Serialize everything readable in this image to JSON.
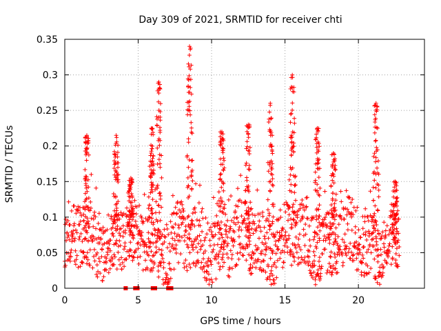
{
  "chart_data": {
    "type": "scatter",
    "title": "Day 309 of 2021, SRMTID for receiver chti",
    "xlabel": "GPS time / hours",
    "ylabel": "SRMTID / TECUs",
    "xlim": [
      0,
      24.5
    ],
    "ylim": [
      0,
      0.35
    ],
    "xticks": [
      0,
      5,
      10,
      15,
      20
    ],
    "xtick_labels": [
      "0",
      "5",
      "10",
      "15",
      "20"
    ],
    "yticks": [
      0,
      0.05,
      0.1,
      0.15,
      0.2,
      0.25,
      0.3,
      0.35
    ],
    "ytick_labels": [
      "0",
      "0.05",
      "0.1",
      "0.15",
      "0.2",
      "0.25",
      "0.3",
      "0.35"
    ],
    "grid": true,
    "marker": "plus",
    "color": "#ff0000",
    "data_range_hours": [
      0,
      22.8
    ],
    "baseline_band": [
      0.02,
      0.11
    ],
    "bursts": [
      {
        "x": 1.5,
        "peak": 0.215
      },
      {
        "x": 3.5,
        "peak": 0.215
      },
      {
        "x": 4.5,
        "peak": 0.155
      },
      {
        "x": 5.9,
        "peak": 0.225
      },
      {
        "x": 6.4,
        "peak": 0.29
      },
      {
        "x": 8.5,
        "peak": 0.34
      },
      {
        "x": 10.7,
        "peak": 0.22
      },
      {
        "x": 12.5,
        "peak": 0.23
      },
      {
        "x": 14.0,
        "peak": 0.26
      },
      {
        "x": 15.5,
        "peak": 0.3
      },
      {
        "x": 17.2,
        "peak": 0.225
      },
      {
        "x": 18.3,
        "peak": 0.19
      },
      {
        "x": 21.2,
        "peak": 0.26
      },
      {
        "x": 22.5,
        "peak": 0.15
      }
    ],
    "zero_markers_x": [
      4.15,
      4.8,
      4.95,
      6.0,
      6.15,
      7.05,
      7.25
    ],
    "legend": "none"
  }
}
